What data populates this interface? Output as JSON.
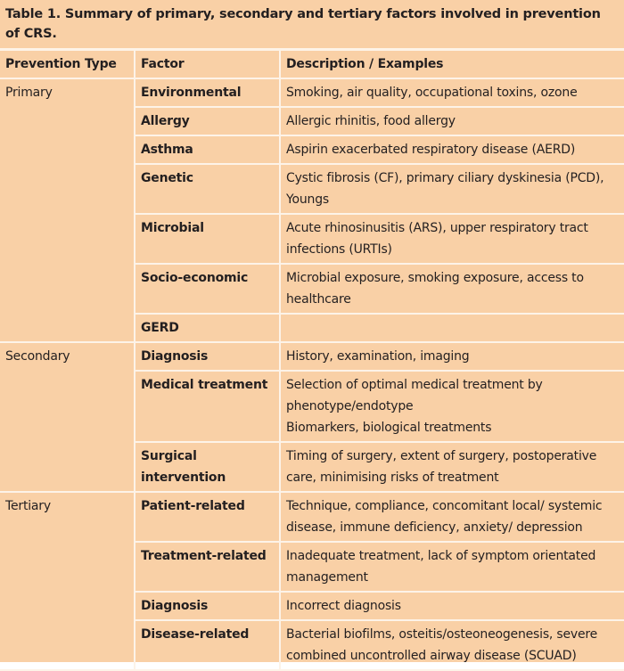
{
  "title": "Table 1. Summary of primary, secondary and tertiary factors involved in prevention of CRS.",
  "headers": [
    "Prevention Type",
    "Factor",
    "Description / Examples"
  ],
  "groups": [
    {
      "type": "Primary",
      "rows": [
        {
          "factor": "Environmental",
          "description": [
            "Smoking, air quality, occupational toxins, ozone"
          ]
        },
        {
          "factor": "Allergy",
          "description": [
            "Allergic rhinitis, food allergy"
          ]
        },
        {
          "factor": "Asthma",
          "description": [
            "Aspirin exacerbated respiratory disease (AERD)"
          ]
        },
        {
          "factor": "Genetic",
          "description": [
            "Cystic fibrosis (CF), primary ciliary dyskinesia (PCD), Youngs"
          ]
        },
        {
          "factor": "Microbial",
          "description": [
            "Acute rhinosinusitis (ARS), upper respiratory tract infections (URTIs)"
          ]
        },
        {
          "factor": "Socio-economic",
          "description": [
            "Microbial exposure, smoking exposure, access to healthcare"
          ]
        },
        {
          "factor": "GERD",
          "description": []
        }
      ]
    },
    {
      "type": "Secondary",
      "rows": [
        {
          "factor": "Diagnosis",
          "description": [
            "History, examination, imaging"
          ]
        },
        {
          "factor": "Medical treatment",
          "description": [
            "Selection of optimal medical treatment by phenotype/endotype",
            "Biomarkers, biological treatments"
          ]
        },
        {
          "factor": "Surgical intervention",
          "description": [
            "Timing of surgery, extent of surgery, postoperative care, minimising risks of treatment"
          ]
        }
      ]
    },
    {
      "type": "Tertiary",
      "rows": [
        {
          "factor": "Patient-related",
          "description": [
            "Technique, compliance, concomitant local/ systemic disease, immune deficiency, anxiety/ depression"
          ]
        },
        {
          "factor": "Treatment-related",
          "description": [
            "Inadequate treatment, lack of symptom orientated management"
          ]
        },
        {
          "factor": "Diagnosis",
          "description": [
            "Incorrect diagnosis"
          ]
        },
        {
          "factor": "Disease-related",
          "description": [
            "Bacterial biofilms, osteitis/osteoneogenesis, severe combined uncontrolled airway disease (SCUAD)"
          ]
        }
      ]
    }
  ]
}
